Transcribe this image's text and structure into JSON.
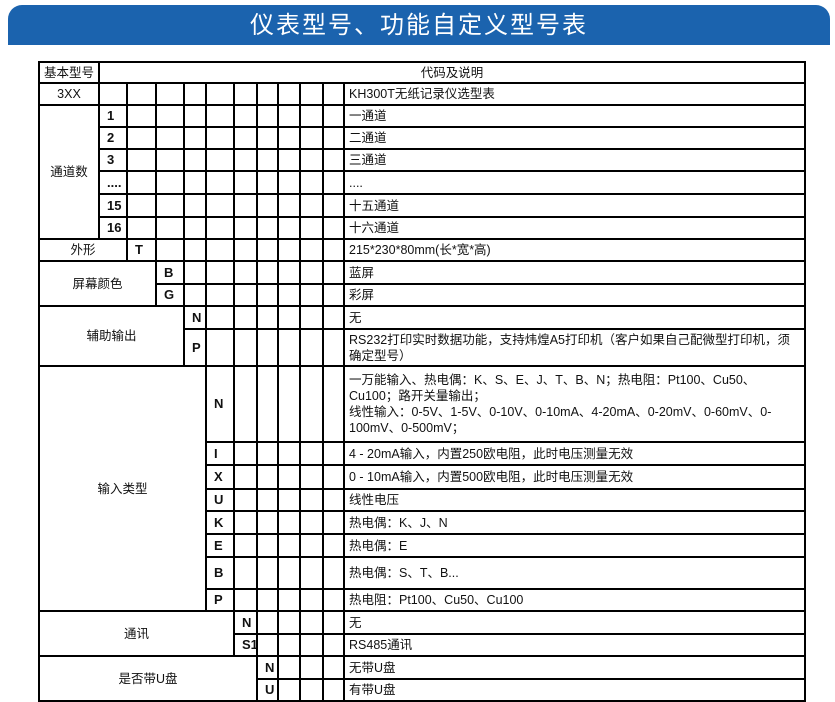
{
  "title": "仪表型号、功能自定义型号表",
  "header": {
    "base_model": "基本型号",
    "code_desc": "代码及说明"
  },
  "base": {
    "code": "3XX",
    "desc": "KH300T无纸记录仪选型表"
  },
  "sections": [
    {
      "label": "通道数",
      "options": [
        {
          "code": "1",
          "desc": "一通道"
        },
        {
          "code": "2",
          "desc": "二通道"
        },
        {
          "code": "3",
          "desc": "三通道"
        },
        {
          "code": "....",
          "desc": "...."
        },
        {
          "code": "15",
          "desc": "十五通道"
        },
        {
          "code": "16",
          "desc": "十六通道"
        }
      ]
    },
    {
      "label": "外形",
      "options": [
        {
          "code": "T",
          "desc": "215*230*80mm(长*宽*高)"
        }
      ]
    },
    {
      "label": "屏幕颜色",
      "options": [
        {
          "code": "B",
          "desc": "蓝屏"
        },
        {
          "code": "G",
          "desc": "彩屏"
        }
      ]
    },
    {
      "label": "辅助输出",
      "options": [
        {
          "code": "N",
          "desc": "无"
        },
        {
          "code": "P",
          "desc": "RS232打印实时数据功能，支持炜煌A5打印机（客户如果自己配微型打印机，须确定型号）"
        }
      ]
    },
    {
      "label": "输入类型",
      "options": [
        {
          "code": "N",
          "desc": "一万能输入、热电偶：K、S、E、J、T、B、N；热电阻：Pt100、Cu50、Cu100；路开关量输出；\n线性输入：0-5V、1-5V、0-10V、0-10mA、4-20mA、0-20mV、0-60mV、0-100mV、0-500mV；"
        },
        {
          "code": "I",
          "desc": "4 - 20mA输入，内置250欧电阻，此时电压测量无效"
        },
        {
          "code": "X",
          "desc": "0 - 10mA输入，内置500欧电阻，此时电压测量无效"
        },
        {
          "code": "U",
          "desc": "线性电压"
        },
        {
          "code": "K",
          "desc": "热电偶：K、J、N"
        },
        {
          "code": "E",
          "desc": "热电偶：E"
        },
        {
          "code": "B",
          "desc": "热电偶：S、T、B..."
        },
        {
          "code": "P",
          "desc": "热电阻：Pt100、Cu50、Cu100"
        }
      ]
    },
    {
      "label": "通讯",
      "options": [
        {
          "code": "N",
          "desc": "无"
        },
        {
          "code": "S1",
          "desc": "RS485通讯"
        }
      ]
    },
    {
      "label": "是否带U盘",
      "options": [
        {
          "code": "N",
          "desc": "无带U盘"
        },
        {
          "code": "U",
          "desc": "有带U盘"
        }
      ]
    }
  ]
}
